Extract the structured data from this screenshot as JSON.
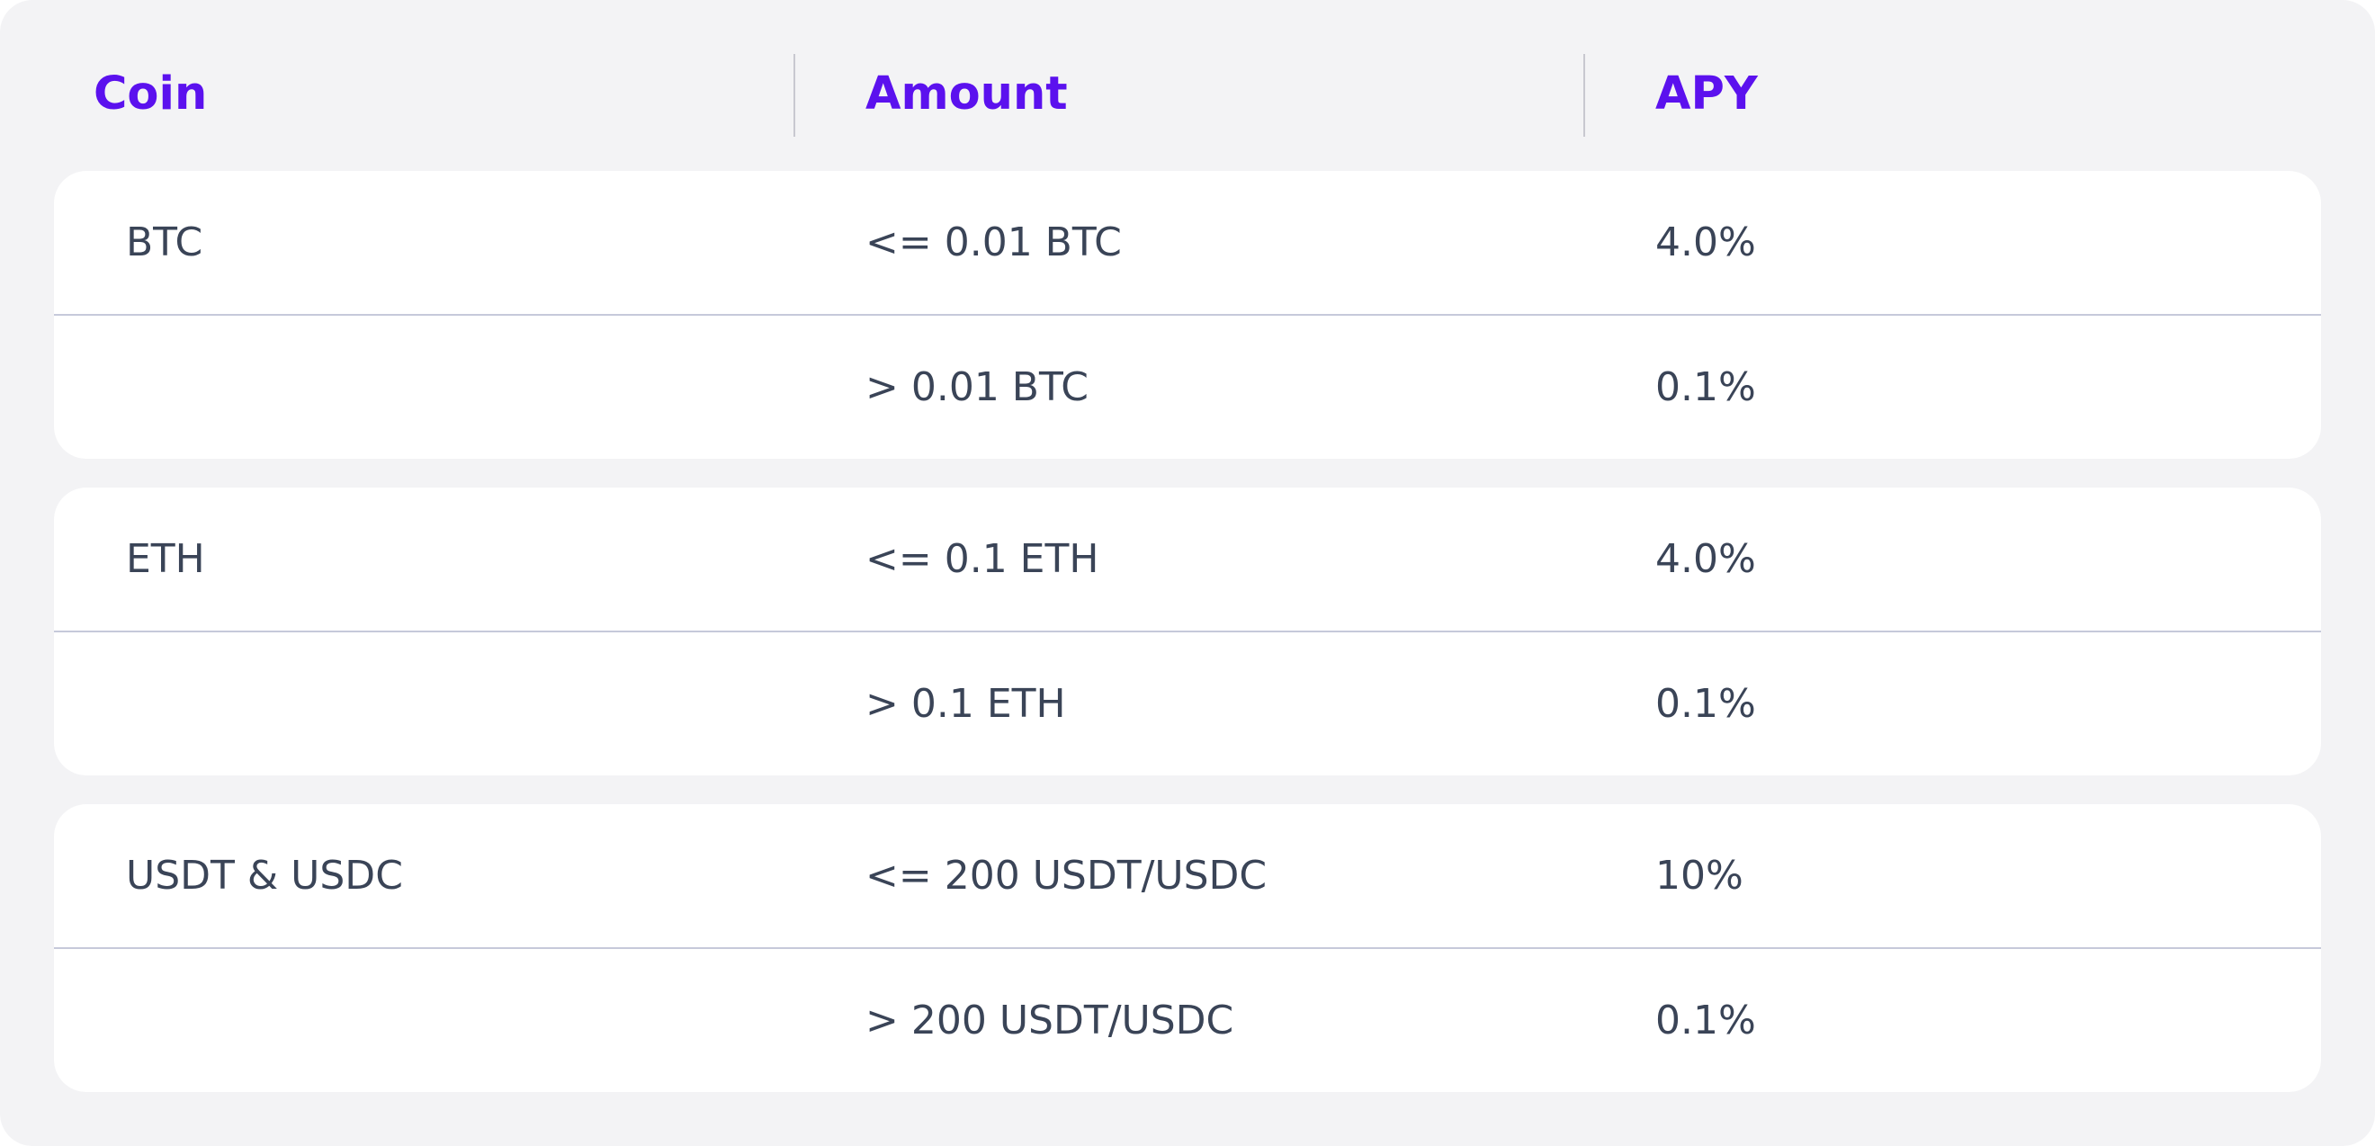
{
  "table": {
    "headers": {
      "coin": "Coin",
      "amount": "Amount",
      "apy": "APY"
    },
    "groups": [
      {
        "coin": "BTC",
        "tiers": [
          {
            "amount": "<= 0.01 BTC",
            "apy": "4.0%"
          },
          {
            "amount": "> 0.01 BTC",
            "apy": "0.1%"
          }
        ]
      },
      {
        "coin": "ETH",
        "tiers": [
          {
            "amount": "<= 0.1 ETH",
            "apy": "4.0%"
          },
          {
            "amount": "> 0.1 ETH",
            "apy": "0.1%"
          }
        ]
      },
      {
        "coin": "USDT & USDC",
        "tiers": [
          {
            "amount": "<= 200 USDT/USDC",
            "apy": "10%"
          },
          {
            "amount": "> 200 USDT/USDC",
            "apy": "0.1%"
          }
        ]
      }
    ]
  },
  "colors": {
    "header_accent": "#5b11ee",
    "body_text": "#3a4457",
    "panel_background": "#f3f3f5",
    "row_background": "#ffffff",
    "row_separator": "#c6c9da"
  }
}
